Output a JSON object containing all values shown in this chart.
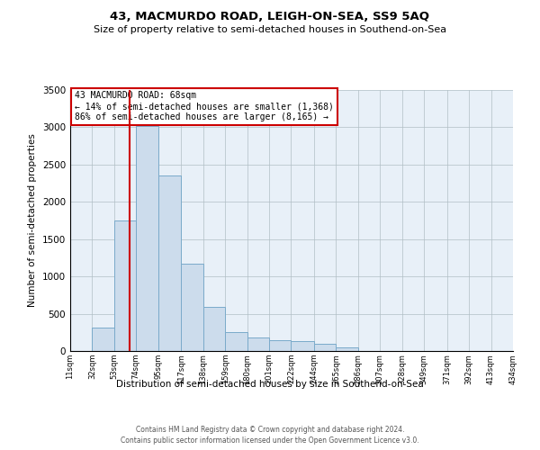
{
  "title": "43, MACMURDO ROAD, LEIGH-ON-SEA, SS9 5AQ",
  "subtitle": "Size of property relative to semi-detached houses in Southend-on-Sea",
  "xlabel": "Distribution of semi-detached houses by size in Southend-on-Sea",
  "ylabel": "Number of semi-detached properties",
  "footer1": "Contains HM Land Registry data © Crown copyright and database right 2024.",
  "footer2": "Contains public sector information licensed under the Open Government Licence v3.0.",
  "annotation_title": "43 MACMURDO ROAD: 68sqm",
  "annotation_line1": "← 14% of semi-detached houses are smaller (1,368)",
  "annotation_line2": "86% of semi-detached houses are larger (8,165) →",
  "property_size": 68,
  "bin_edges": [
    11,
    32,
    53,
    74,
    95,
    117,
    138,
    159,
    180,
    201,
    222,
    244,
    265,
    286,
    307,
    328,
    349,
    371,
    392,
    413,
    434
  ],
  "bin_counts": [
    5,
    310,
    1750,
    3020,
    2350,
    1170,
    590,
    250,
    185,
    150,
    130,
    100,
    50,
    0,
    0,
    0,
    0,
    0,
    0,
    0
  ],
  "bar_color": "#ccdcec",
  "bar_edge_color": "#7aaaca",
  "vline_color": "#cc0000",
  "annotation_box_color": "#cc0000",
  "background_color": "#e8f0f8",
  "grid_color": "#b0bec5",
  "ylim": [
    0,
    3500
  ],
  "yticks": [
    0,
    500,
    1000,
    1500,
    2000,
    2500,
    3000,
    3500
  ],
  "tick_labels": [
    "11sqm",
    "32sqm",
    "53sqm",
    "74sqm",
    "95sqm",
    "117sqm",
    "138sqm",
    "159sqm",
    "180sqm",
    "201sqm",
    "222sqm",
    "244sqm",
    "265sqm",
    "286sqm",
    "307sqm",
    "328sqm",
    "349sqm",
    "371sqm",
    "392sqm",
    "413sqm",
    "434sqm"
  ]
}
